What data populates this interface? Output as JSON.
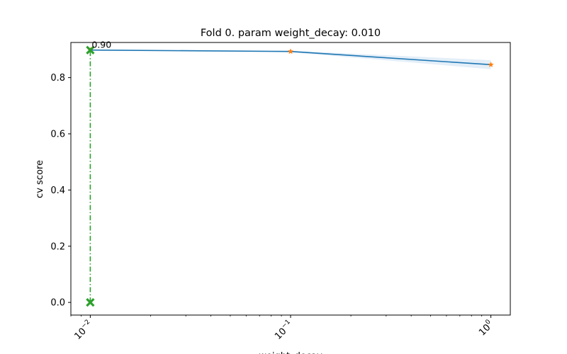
{
  "chart_data": {
    "type": "line",
    "title": "Fold 0. param weight_decay: 0.010",
    "xlabel": "weight_decay",
    "ylabel": "cv score",
    "xscale": "log",
    "xlim": [
      0.008,
      1.25
    ],
    "ylim": [
      -0.045,
      0.925
    ],
    "x_ticks": [
      {
        "value": 0.01,
        "base": "10",
        "exp": "−2"
      },
      {
        "value": 0.1,
        "base": "10",
        "exp": "−1"
      },
      {
        "value": 1,
        "base": "10",
        "exp": "0"
      }
    ],
    "y_ticks": [
      {
        "value": 0.0,
        "label": "0.0"
      },
      {
        "value": 0.2,
        "label": "0.2"
      },
      {
        "value": 0.4,
        "label": "0.4"
      },
      {
        "value": 0.6,
        "label": "0.6"
      },
      {
        "value": 0.8,
        "label": "0.8"
      }
    ],
    "series": [
      {
        "x": [
          0.01,
          0.1,
          1
        ],
        "values": [
          0.898,
          0.893,
          0.846
        ],
        "band_lower": [
          0.896,
          0.89,
          0.83
        ],
        "band_upper": [
          0.9,
          0.896,
          0.862
        ],
        "color": "#1f77b4",
        "band_color": "#e3eef8",
        "marker_color": "#ff7f0e"
      }
    ],
    "best": {
      "x": 0.01,
      "y": 0.898,
      "label": "0.90",
      "color": "#2ca02c",
      "line_style": "dash-dot"
    },
    "grid": false
  }
}
